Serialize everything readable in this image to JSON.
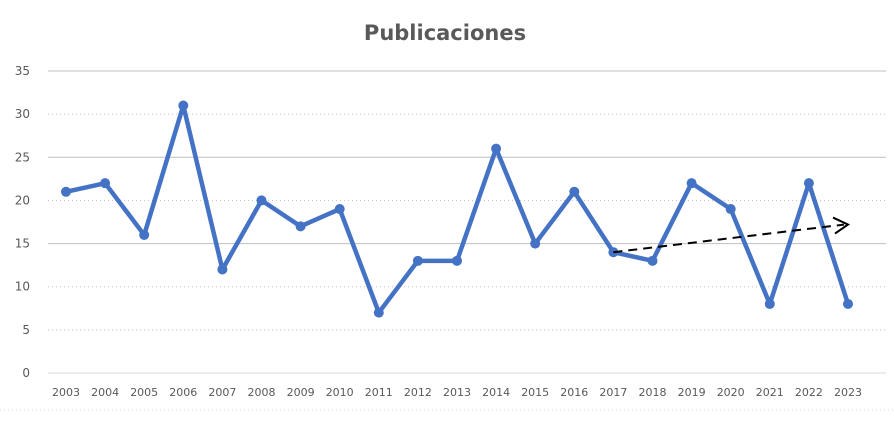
{
  "chart_data": {
    "type": "line",
    "title": "Publicaciones",
    "xlabel": "",
    "ylabel": "",
    "categories": [
      "2003",
      "2004",
      "2005",
      "2006",
      "2007",
      "2008",
      "2009",
      "2010",
      "2011",
      "2012",
      "2013",
      "2014",
      "2015",
      "2016",
      "2017",
      "2018",
      "2019",
      "2020",
      "2021",
      "2022",
      "2023"
    ],
    "values": [
      21,
      22,
      16,
      31,
      12,
      20,
      17,
      19,
      7,
      13,
      13,
      26,
      15,
      21,
      14,
      13,
      22,
      19,
      8,
      22,
      8
    ],
    "ylim": [
      0,
      35
    ],
    "yticks": [
      "0",
      "5",
      "10",
      "15",
      "20",
      "25",
      "30",
      "35"
    ],
    "grid": true,
    "line_color": "#4472C4",
    "trend_arrow": {
      "from": [
        "2017",
        14
      ],
      "to": [
        "2023",
        17.2
      ],
      "style": "dashed",
      "color": "#000000"
    }
  }
}
